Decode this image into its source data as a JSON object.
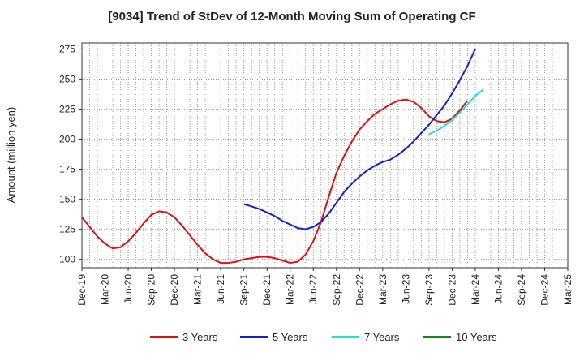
{
  "chart_data": {
    "type": "line",
    "title": "[9034]  Trend of StDev of 12-Month Moving Sum of Operating CF",
    "xlabel": "",
    "ylabel": "Amount (million yen)",
    "ylim": [
      93,
      280
    ],
    "yticks": [
      100,
      125,
      150,
      175,
      200,
      225,
      250,
      275
    ],
    "xticks": [
      "Dec-19",
      "Mar-20",
      "Jun-20",
      "Sep-20",
      "Dec-20",
      "Mar-21",
      "Jun-21",
      "Sep-21",
      "Dec-21",
      "Mar-22",
      "Jun-22",
      "Sep-22",
      "Dec-22",
      "Mar-23",
      "Jun-23",
      "Sep-23",
      "Dec-23",
      "Mar-24",
      "Jun-24",
      "Sep-24",
      "Dec-24",
      "Mar-25"
    ],
    "grid": true,
    "legend_position": "bottom",
    "series": [
      {
        "name": "3 Years",
        "color": "#dd1111",
        "start_index": 0,
        "values": [
          135,
          127,
          119,
          113,
          109,
          110,
          115,
          122,
          130,
          137,
          140,
          139,
          135,
          128,
          120,
          112,
          105,
          100,
          97,
          97,
          98,
          100,
          101,
          102,
          102,
          101,
          99,
          97,
          98,
          104,
          115,
          131,
          152,
          172,
          186,
          198,
          208,
          215,
          221,
          225,
          229,
          232,
          233,
          231,
          226,
          219,
          215,
          214,
          217,
          224,
          232
        ]
      },
      {
        "name": "5 Years",
        "color": "#1122cc",
        "start_index": 21,
        "values": [
          146,
          144,
          142,
          139,
          136,
          132,
          129,
          126,
          125,
          127,
          131,
          138,
          147,
          156,
          163,
          169,
          174,
          178,
          181,
          183,
          187,
          192,
          198,
          205,
          212,
          220,
          228,
          238,
          249,
          261,
          275
        ]
      },
      {
        "name": "7 Years",
        "color": "#22e0e0",
        "start_index": 45,
        "values": [
          204,
          207,
          211,
          216,
          222,
          229,
          236,
          241
        ]
      },
      {
        "name": "10 Years",
        "color": "#118811",
        "start_index": 0,
        "values": []
      }
    ]
  }
}
